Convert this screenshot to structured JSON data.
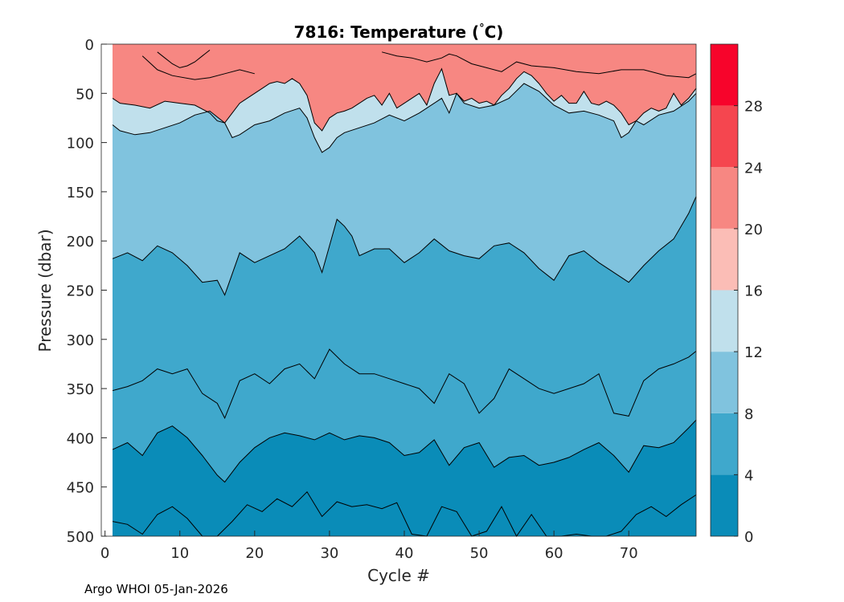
{
  "footer": "Argo WHOI 05-Jan-2026",
  "chart_data": {
    "type": "filled-contour",
    "title_prefix": "7816:  Temperature (",
    "title_degree": "°",
    "title_suffix": "C)",
    "xlabel": "Cycle #",
    "ylabel": "Pressure (dbar)",
    "xlim": [
      -0.5,
      79
    ],
    "ylim": [
      0,
      500
    ],
    "data_xlim": [
      1,
      79
    ],
    "xticks": [
      0,
      10,
      20,
      30,
      40,
      50,
      60,
      70
    ],
    "yticks": [
      0,
      50,
      100,
      150,
      200,
      250,
      300,
      350,
      400,
      450,
      500
    ],
    "colorbar": {
      "range": [
        0,
        32
      ],
      "ticks": [
        0,
        4,
        8,
        12,
        16,
        20,
        24,
        28
      ],
      "levels": [
        {
          "from": 0,
          "to": 4,
          "color": "#0a8cb8"
        },
        {
          "from": 4,
          "to": 8,
          "color": "#3fa8cc"
        },
        {
          "from": 8,
          "to": 12,
          "color": "#80c3de"
        },
        {
          "from": 12,
          "to": 16,
          "color": "#c0e0ec"
        },
        {
          "from": 16,
          "to": 20,
          "color": "#fbbdb6"
        },
        {
          "from": 20,
          "to": 24,
          "color": "#f78782"
        },
        {
          "from": 24,
          "to": 28,
          "color": "#f5464f"
        },
        {
          "from": 28,
          "to": 32,
          "color": "#f7042b"
        }
      ]
    },
    "isotherms": [
      {
        "level": 24,
        "xs": [
          7,
          8,
          9,
          10,
          11,
          12,
          13,
          14
        ],
        "depths": [
          8,
          14,
          20,
          24,
          22,
          18,
          12,
          6
        ]
      },
      {
        "level": 20,
        "xs": [
          5,
          7,
          9,
          12,
          14,
          16,
          18,
          20
        ],
        "depths": [
          12,
          26,
          32,
          36,
          34,
          30,
          26,
          30
        ]
      },
      {
        "level": 20,
        "xs": [
          37,
          39,
          41,
          43,
          45,
          46,
          47,
          49,
          51,
          53,
          55,
          57,
          60,
          63,
          66,
          69,
          72,
          75,
          78,
          79
        ],
        "depths": [
          8,
          12,
          14,
          18,
          14,
          10,
          12,
          20,
          24,
          28,
          18,
          22,
          24,
          28,
          30,
          26,
          26,
          32,
          34,
          30
        ]
      },
      {
        "level": 16,
        "xs": [
          0,
          2,
          4,
          6,
          8,
          10,
          12,
          14,
          15,
          16,
          17,
          18,
          19,
          20,
          21,
          22,
          23,
          24,
          25,
          26,
          27,
          28,
          29,
          30,
          31,
          32,
          33,
          34,
          35,
          36,
          37,
          38,
          39,
          40,
          41,
          42,
          43,
          44,
          45,
          46,
          47,
          48,
          49,
          50,
          51,
          52,
          53,
          54,
          55,
          56,
          57,
          58,
          59,
          60,
          61,
          62,
          63,
          64,
          65,
          66,
          67,
          68,
          69,
          70,
          71,
          72,
          73,
          74,
          75,
          76,
          77,
          78,
          79
        ],
        "depths": [
          55,
          60,
          62,
          65,
          58,
          60,
          62,
          70,
          78,
          80,
          70,
          60,
          55,
          50,
          45,
          40,
          38,
          40,
          35,
          40,
          52,
          80,
          88,
          75,
          70,
          68,
          65,
          60,
          55,
          52,
          62,
          50,
          65,
          60,
          55,
          50,
          62,
          40,
          25,
          52,
          50,
          58,
          55,
          60,
          58,
          62,
          52,
          45,
          35,
          28,
          32,
          40,
          50,
          58,
          52,
          60,
          60,
          48,
          60,
          62,
          58,
          62,
          70,
          82,
          78,
          70,
          65,
          68,
          65,
          50,
          62,
          55,
          45
        ]
      },
      {
        "level": 12,
        "xs": [
          0,
          2,
          4,
          6,
          8,
          10,
          12,
          14,
          16,
          17,
          18,
          20,
          22,
          24,
          26,
          27,
          28,
          29,
          30,
          31,
          32,
          34,
          36,
          38,
          40,
          42,
          44,
          45,
          46,
          47,
          48,
          50,
          52,
          54,
          56,
          58,
          60,
          62,
          64,
          66,
          68,
          69,
          70,
          71,
          72,
          74,
          76,
          78,
          79
        ],
        "depths": [
          82,
          88,
          92,
          90,
          85,
          80,
          72,
          68,
          80,
          95,
          92,
          82,
          78,
          70,
          65,
          75,
          95,
          110,
          105,
          95,
          90,
          85,
          80,
          72,
          78,
          70,
          60,
          55,
          70,
          50,
          60,
          65,
          62,
          55,
          40,
          48,
          62,
          70,
          68,
          72,
          78,
          95,
          90,
          78,
          82,
          72,
          68,
          58,
          50
        ]
      },
      {
        "level": 8,
        "xs": [
          1,
          3,
          5,
          7,
          9,
          11,
          13,
          15,
          16,
          18,
          20,
          22,
          24,
          26,
          28,
          29,
          30,
          31,
          32,
          33,
          34,
          36,
          38,
          40,
          42,
          44,
          46,
          48,
          50,
          52,
          54,
          56,
          58,
          60,
          62,
          64,
          66,
          68,
          70,
          72,
          74,
          76,
          78,
          79
        ],
        "depths": [
          218,
          212,
          220,
          205,
          212,
          225,
          242,
          240,
          255,
          212,
          222,
          215,
          208,
          195,
          212,
          232,
          205,
          178,
          185,
          195,
          215,
          208,
          208,
          222,
          212,
          198,
          210,
          215,
          218,
          205,
          202,
          212,
          228,
          240,
          215,
          210,
          222,
          232,
          242,
          225,
          210,
          198,
          172,
          155
        ]
      },
      {
        "level": 8,
        "xs": [
          1,
          3,
          5,
          7,
          9,
          11,
          13,
          15,
          16,
          18,
          20,
          22,
          24,
          26,
          28,
          30,
          32,
          34,
          36,
          38,
          40,
          42,
          44,
          46,
          48,
          50,
          52,
          54,
          56,
          58,
          60,
          62,
          64,
          66,
          68,
          70,
          72,
          74,
          76,
          78,
          79
        ],
        "depths": [
          352,
          348,
          342,
          330,
          335,
          330,
          355,
          365,
          380,
          342,
          335,
          345,
          330,
          325,
          340,
          310,
          325,
          335,
          335,
          340,
          345,
          350,
          365,
          335,
          345,
          375,
          360,
          330,
          340,
          350,
          355,
          350,
          345,
          335,
          375,
          378,
          342,
          330,
          325,
          318,
          312
        ]
      },
      {
        "level": 4,
        "xs": [
          1,
          3,
          5,
          7,
          9,
          11,
          13,
          15,
          16,
          18,
          20,
          22,
          24,
          26,
          28,
          30,
          32,
          34,
          36,
          38,
          40,
          42,
          44,
          46,
          48,
          50,
          52,
          54,
          56,
          58,
          60,
          62,
          64,
          66,
          68,
          70,
          72,
          74,
          76,
          78,
          79
        ],
        "depths": [
          412,
          405,
          418,
          395,
          388,
          400,
          418,
          438,
          445,
          425,
          410,
          400,
          395,
          398,
          402,
          395,
          402,
          398,
          400,
          405,
          418,
          415,
          402,
          428,
          410,
          405,
          430,
          420,
          418,
          428,
          425,
          420,
          412,
          405,
          418,
          435,
          408,
          410,
          405,
          390,
          382
        ]
      },
      {
        "level": 4,
        "xs": [
          1,
          3,
          5,
          7,
          9,
          11,
          13,
          15,
          17,
          19,
          21,
          23,
          25,
          27,
          29,
          31,
          33,
          35,
          37,
          39,
          41,
          43,
          45,
          47,
          49,
          51,
          53,
          55,
          57,
          59,
          61,
          63,
          65,
          67,
          69,
          71,
          73,
          75,
          77,
          79
        ],
        "depths": [
          485,
          488,
          498,
          478,
          470,
          482,
          500,
          500,
          485,
          468,
          475,
          462,
          470,
          455,
          480,
          465,
          470,
          468,
          472,
          466,
          498,
          500,
          470,
          475,
          500,
          495,
          470,
          500,
          478,
          500,
          500,
          498,
          500,
          500,
          495,
          478,
          470,
          480,
          468,
          458
        ]
      }
    ]
  }
}
